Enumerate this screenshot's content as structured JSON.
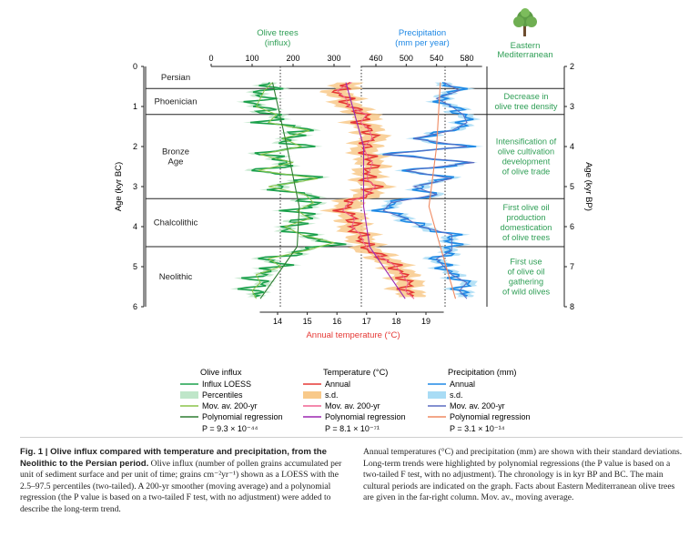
{
  "panel_headers": {
    "olive": [
      "Olive trees",
      "(influx)"
    ],
    "precip": [
      "Precipitation",
      "(mm per year)"
    ],
    "med": [
      "Eastern",
      "Mediterranean"
    ]
  },
  "axes": {
    "left_label": "Age (kyr BC)",
    "right_label": "Age (kyr BP)",
    "bottom_label": "Annual temperature (°C)",
    "left_ticks": [
      "0",
      "1",
      "2",
      "3",
      "4",
      "5",
      "6"
    ],
    "right_ticks": [
      "2",
      "3",
      "4",
      "5",
      "6",
      "7",
      "8"
    ],
    "bottom_ticks": [
      "14",
      "15",
      "16",
      "17",
      "18",
      "19"
    ],
    "olive_ticks": [
      "0",
      "100",
      "200",
      "300"
    ],
    "precip_ticks": [
      "460",
      "500",
      "540",
      "580"
    ]
  },
  "periods": [
    {
      "name": [
        "Persian"
      ],
      "start": 0.0,
      "end": 0.55
    },
    {
      "name": [
        "Phoenician"
      ],
      "start": 0.55,
      "end": 1.2
    },
    {
      "name": [
        "Bronze",
        "Age"
      ],
      "start": 1.2,
      "end": 3.3
    },
    {
      "name": [
        "Chalcolithic"
      ],
      "start": 3.3,
      "end": 4.5
    },
    {
      "name": [
        "Neolithic"
      ],
      "start": 4.5,
      "end": 6.0
    }
  ],
  "med_facts": [
    {
      "lines": [
        "Decrease in",
        "olive tree density"
      ]
    },
    {
      "lines": [
        "Intensification of",
        "olive cultivation",
        "development",
        "of olive trade"
      ]
    },
    {
      "lines": [
        "First olive oil",
        "production",
        "domestication",
        "of olive trees"
      ]
    },
    {
      "lines": [
        "First use",
        "of olive oil",
        "gathering",
        "of wild olives"
      ]
    }
  ],
  "legend": [
    {
      "title": "Olive influx",
      "items": [
        "Influx LOESS",
        "Percentiles",
        "Mov. av. 200-yr",
        "Polynomial regression"
      ],
      "pvalue": "P = 9.3 × 10⁻⁴⁴"
    },
    {
      "title": "Temperature (°C)",
      "items": [
        "Annual",
        "s.d.",
        "Mov. av. 200-yr",
        "Polynomial regression"
      ],
      "pvalue": "P = 8.1 × 10⁻⁷¹"
    },
    {
      "title": "Precipitation (mm)",
      "items": [
        "Annual",
        "s.d.",
        "Mov. av. 200-yr",
        "Polynomial regression"
      ],
      "pvalue": "P = 3.1 × 10⁻¹⁴"
    }
  ],
  "colors": {
    "olive": "#1aa04b",
    "olive_band": "#bfe6c9",
    "olive_mov": "#8bc34a",
    "olive_poly": "#2e7d32",
    "temp": "#e53935",
    "temp_band": "#f8c98a",
    "temp_mov": "#f06292",
    "temp_poly": "#9c27b0",
    "precip": "#1e88e5",
    "precip_band": "#a9dcf5",
    "precip_mov": "#5c6bc0",
    "precip_poly": "#ef8a62",
    "label_green": "#2e9e55",
    "label_blue": "#1e88e5",
    "label_red": "#e53935"
  },
  "caption": {
    "bold": "Fig. 1 | Olive influx compared with temperature and precipitation, from the Neolithic to the Persian period.",
    "left": " Olive influx (number of pollen grains accumulated per unit of sediment surface and per unit of time; grains cm⁻²yr⁻¹) shown as a LOESS with the 2.5–97.5 percentiles (two-tailed). A 200-yr smoother (moving average) and a polynomial regression (the P value is based on a two-tailed F test, with no adjustment) were added to describe the long-term trend.",
    "right": "Annual temperatures (°C) and precipitation (mm) are shown with their standard deviations. Long-term trends were highlighted by polynomial regressions (the P value is based on a two-tailed F test, with no adjustment). The chronology is in kyr BP and BC. The main cultural periods are indicated on the graph. Facts about Eastern Mediterranean olive trees are given in the far-right column. Mov. av., moving average."
  },
  "chart_data": {
    "type": "line",
    "y_axis": "Age (kyr BC)",
    "ylim": [
      0,
      6
    ],
    "series": [
      {
        "name": "Influx LOESS",
        "axis": "Olive trees (influx)",
        "xlim": [
          0,
          360
        ],
        "age": [
          0.4,
          0.6,
          0.8,
          1.0,
          1.2,
          1.4,
          1.6,
          1.8,
          2.0,
          2.2,
          2.4,
          2.6,
          2.8,
          3.0,
          3.2,
          3.4,
          3.6,
          3.8,
          4.0,
          4.2,
          4.4,
          4.6,
          4.8,
          5.0,
          5.2,
          5.4,
          5.6,
          5.8
        ],
        "values": [
          150,
          130,
          120,
          110,
          160,
          140,
          240,
          175,
          220,
          120,
          200,
          115,
          260,
          140,
          230,
          250,
          210,
          240,
          180,
          220,
          300,
          230,
          140,
          170,
          110,
          120,
          100,
          110
        ]
      },
      {
        "name": "Annual",
        "axis": "Annual temperature (°C)",
        "xlim": [
          13.2,
          19.6
        ],
        "age": [
          0.4,
          0.6,
          0.8,
          1.0,
          1.2,
          1.4,
          1.6,
          1.8,
          2.0,
          2.2,
          2.4,
          2.6,
          2.8,
          3.0,
          3.2,
          3.4,
          3.6,
          3.8,
          4.0,
          4.2,
          4.4,
          4.6,
          4.8,
          5.0,
          5.2,
          5.4,
          5.6,
          5.8
        ],
        "values": [
          16.5,
          16.0,
          16.3,
          16.4,
          17.0,
          16.8,
          17.1,
          17.2,
          16.9,
          17.0,
          17.2,
          17.1,
          17.0,
          17.3,
          17.0,
          16.4,
          16.2,
          16.6,
          16.5,
          16.8,
          16.9,
          17.1,
          17.6,
          18.0,
          18.2,
          18.4,
          18.3,
          18.6
        ]
      },
      {
        "name": "Annual",
        "axis": "Precipitation (mm per year)",
        "xlim": [
          400,
          600
        ],
        "age": [
          0.4,
          0.6,
          0.8,
          1.0,
          1.2,
          1.4,
          1.6,
          1.8,
          2.0,
          2.2,
          2.4,
          2.6,
          2.8,
          3.0,
          3.2,
          3.4,
          3.6,
          3.8,
          4.0,
          4.2,
          4.4,
          4.6,
          4.8,
          5.0,
          5.2,
          5.4,
          5.6,
          5.8
        ],
        "values": [
          550,
          570,
          540,
          560,
          575,
          580,
          560,
          510,
          580,
          470,
          590,
          500,
          560,
          510,
          540,
          480,
          470,
          500,
          520,
          560,
          560,
          560,
          540,
          550,
          560,
          580,
          570,
          580
        ]
      }
    ]
  }
}
